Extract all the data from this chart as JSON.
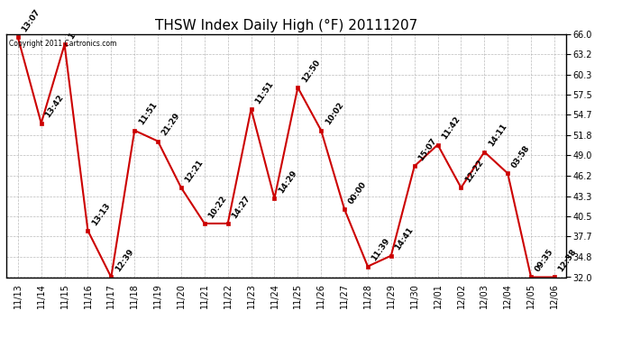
{
  "title": "THSW Index Daily High (°F) 20111207",
  "copyright": "Copyright 2011 Cartronics.com",
  "dates": [
    "11/13",
    "11/14",
    "11/15",
    "11/16",
    "11/17",
    "11/18",
    "11/19",
    "11/20",
    "11/21",
    "11/22",
    "11/23",
    "11/24",
    "11/25",
    "11/26",
    "11/27",
    "11/28",
    "11/29",
    "11/30",
    "12/01",
    "12/02",
    "12/03",
    "12/04",
    "12/05",
    "12/06"
  ],
  "values": [
    65.5,
    53.5,
    64.5,
    38.5,
    32.0,
    52.5,
    51.0,
    44.5,
    39.5,
    39.5,
    55.5,
    43.0,
    58.5,
    52.5,
    41.5,
    33.5,
    35.0,
    47.5,
    50.5,
    44.5,
    49.5,
    46.5,
    32.0,
    32.0
  ],
  "times": [
    "13:07",
    "13:42",
    "1",
    "13:13",
    "12:39",
    "11:51",
    "21:29",
    "12:21",
    "10:22",
    "14:27",
    "11:51",
    "14:29",
    "12:50",
    "10:02",
    "00:00",
    "11:39",
    "14:41",
    "15:07",
    "11:42",
    "12:22",
    "14:11",
    "03:58",
    "09:35",
    "12:38"
  ],
  "ylim": [
    32.0,
    66.0
  ],
  "yticks": [
    32.0,
    34.8,
    37.7,
    40.5,
    43.3,
    46.2,
    49.0,
    51.8,
    54.7,
    57.5,
    60.3,
    63.2,
    66.0
  ],
  "line_color": "#cc0000",
  "marker_color": "#cc0000",
  "bg_color": "#ffffff",
  "grid_color": "#aaaaaa",
  "title_fontsize": 11,
  "label_fontsize": 7,
  "annotation_fontsize": 6.5,
  "copyright_fontsize": 5.5
}
